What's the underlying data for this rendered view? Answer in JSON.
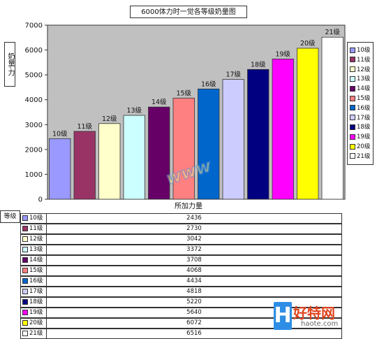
{
  "chart_data": {
    "type": "bar",
    "title": "6000体力时一觉各等级奶量图",
    "ylabel": "奶量-力",
    "xlabel": "所加力量",
    "categories": [
      "10级",
      "11级",
      "12级",
      "13级",
      "14级",
      "15级",
      "16级",
      "17级",
      "18级",
      "19级",
      "20级",
      "21级"
    ],
    "values": [
      2436,
      2730,
      3042,
      3372,
      3708,
      4068,
      4434,
      4818,
      5220,
      5640,
      6072,
      6516
    ],
    "ylim": [
      0,
      7000
    ],
    "yticks": [
      "0",
      "1000",
      "2000",
      "3000",
      "4000",
      "5000",
      "6000",
      "7000"
    ],
    "colors": [
      "#9999ff",
      "#993366",
      "#ffffcc",
      "#ccffff",
      "#660066",
      "#ff8080",
      "#0066cc",
      "#ccccff",
      "#000080",
      "#ff00ff",
      "#ffff00",
      "#ffffff"
    ],
    "grid": false,
    "legend_position": "right",
    "table_row_header": "等级"
  },
  "watermark": {
    "site_name": "好特网",
    "site_url": "haote.com",
    "logo_letter": "H"
  }
}
